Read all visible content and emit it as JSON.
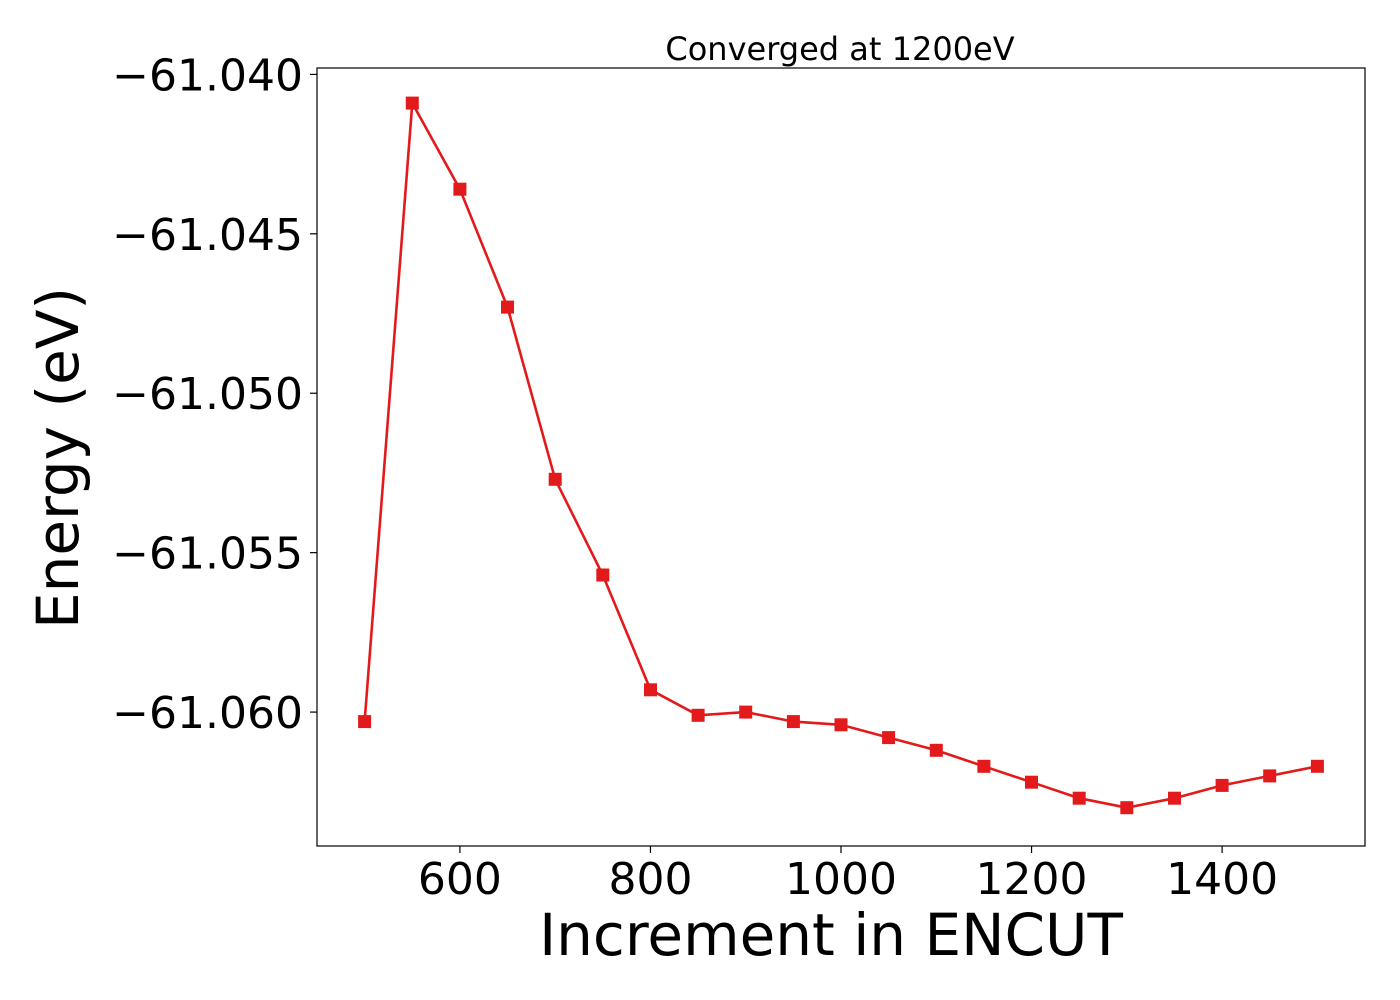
{
  "chart_data": {
    "type": "line",
    "title": "Converged at 1200eV",
    "xlabel": "Increment in ENCUT",
    "ylabel": "Energy (eV)",
    "xlim": [
      450,
      1550
    ],
    "ylim": [
      -61.0642,
      -61.0398
    ],
    "xticks": [
      600,
      800,
      1000,
      1200,
      1400
    ],
    "xtick_labels": [
      "600",
      "800",
      "1000",
      "1200",
      "1400"
    ],
    "yticks": [
      -61.04,
      -61.045,
      -61.05,
      -61.055,
      -61.06
    ],
    "ytick_labels": [
      "−61.040",
      "−61.045",
      "−61.050",
      "−61.055",
      "−61.060"
    ],
    "grid": false,
    "series": [
      {
        "color": "#e31a1c",
        "marker": "square",
        "x": [
          500,
          550,
          600,
          650,
          700,
          750,
          800,
          850,
          900,
          950,
          1000,
          1050,
          1100,
          1150,
          1200,
          1250,
          1300,
          1350,
          1400,
          1450,
          1500
        ],
        "y": [
          -61.0603,
          -61.0409,
          -61.0436,
          -61.0473,
          -61.0527,
          -61.0557,
          -61.0593,
          -61.0601,
          -61.06,
          -61.0603,
          -61.0604,
          -61.0608,
          -61.0612,
          -61.0617,
          -61.0622,
          -61.0627,
          -61.063,
          -61.0627,
          -61.0623,
          -61.062,
          -61.0617
        ]
      }
    ]
  }
}
